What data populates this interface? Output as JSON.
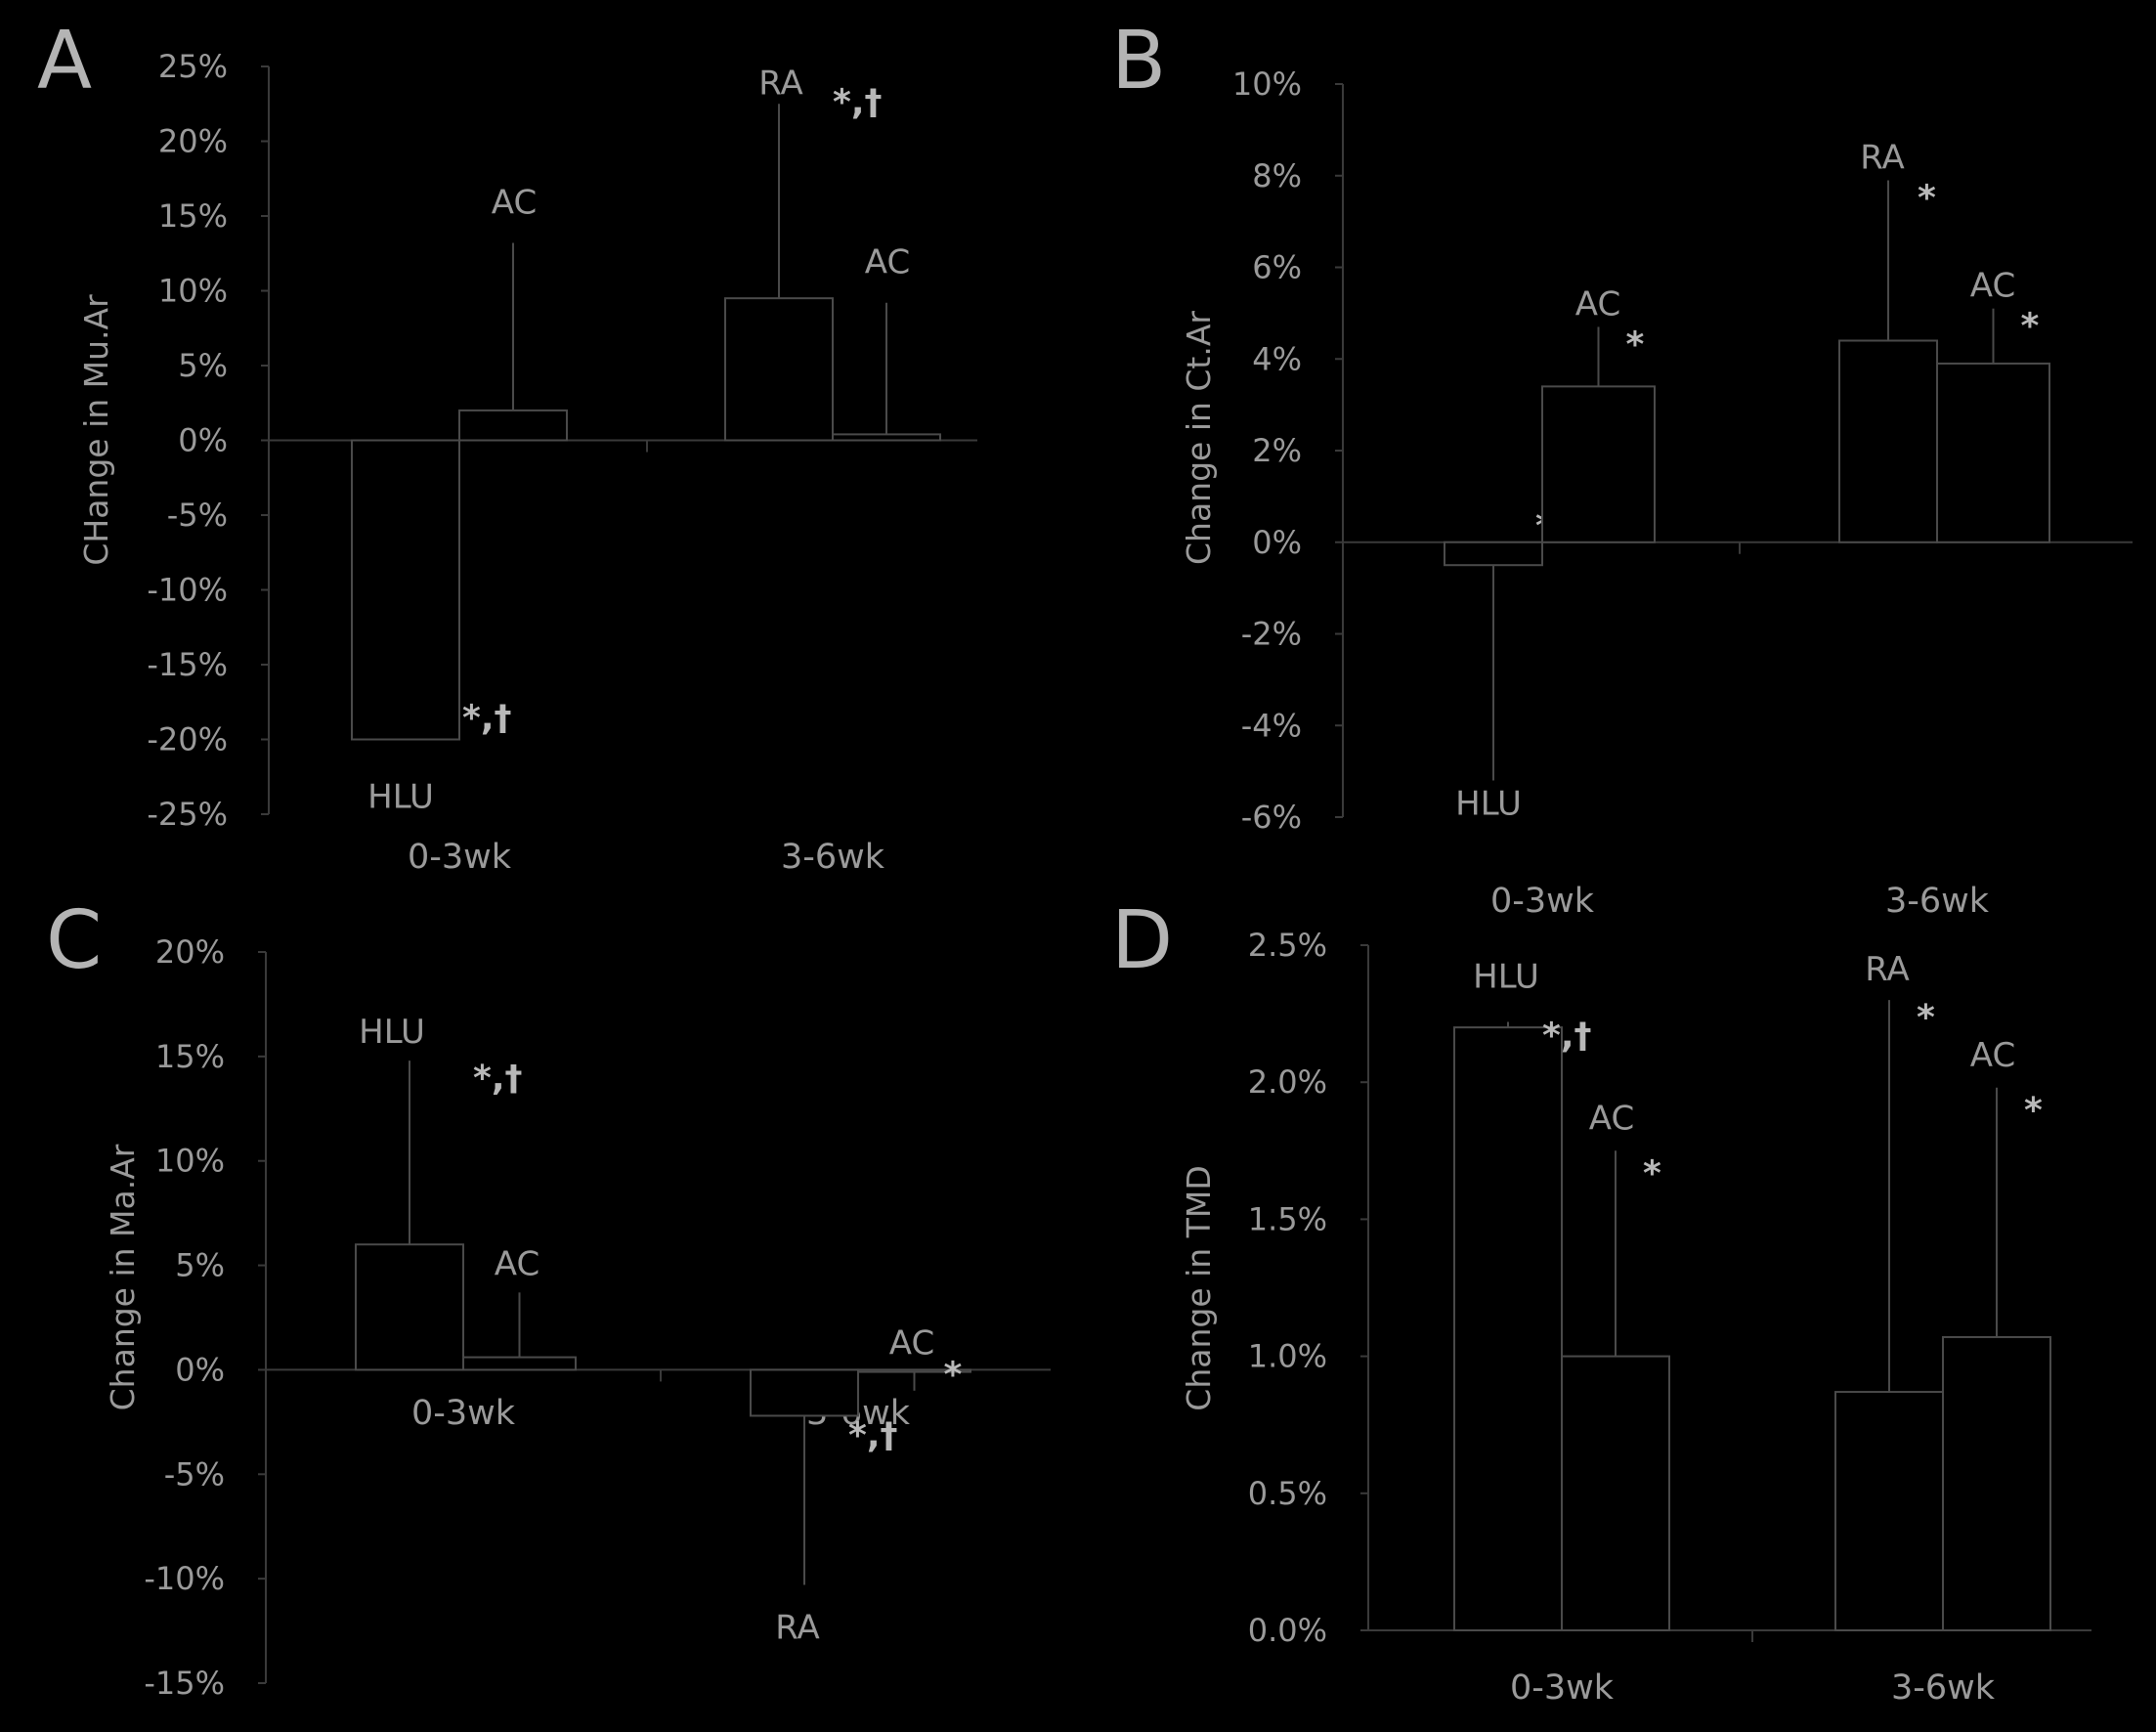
{
  "chart_data": [
    {
      "id": "A",
      "panel_label": "A",
      "type": "bar",
      "ylabel": "CHange in Mu.Ar",
      "ylim": [
        -25,
        25
      ],
      "yticks": [
        -25,
        -20,
        -15,
        -10,
        -5,
        0,
        5,
        10,
        15,
        20,
        25
      ],
      "tick_labels": [
        "-25%",
        "-20%",
        "-15%",
        "-10%",
        "-5%",
        "0%",
        "5%",
        "10%",
        "15%",
        "20%",
        "25%"
      ],
      "categories": [
        "0-3wk",
        "3-6wk"
      ],
      "series": [
        {
          "name": "HLU",
          "values": [
            -20,
            null
          ],
          "errors": [
            0,
            null
          ],
          "sig": [
            "*,†",
            null
          ]
        },
        {
          "name": "RA",
          "values": [
            null,
            9.5
          ],
          "errors": [
            null,
            13
          ],
          "sig": [
            null,
            "*,†"
          ]
        },
        {
          "name": "AC",
          "values": [
            2,
            0.4
          ],
          "errors": [
            11.2,
            8.8
          ],
          "sig": [
            "",
            ""
          ]
        }
      ]
    },
    {
      "id": "B",
      "panel_label": "B",
      "type": "bar",
      "ylabel": "Change in Ct.Ar",
      "ylim": [
        -6,
        10
      ],
      "yticks": [
        -6,
        -4,
        -2,
        0,
        2,
        4,
        6,
        8,
        10
      ],
      "tick_labels": [
        "-6%",
        "-4%",
        "-2%",
        "0%",
        "2%",
        "4%",
        "6%",
        "8%",
        "10%"
      ],
      "categories": [
        "0-3wk",
        "3-6wk"
      ],
      "series": [
        {
          "name": "HLU",
          "values": [
            -0.5,
            null
          ],
          "errors": [
            4.7,
            null
          ],
          "sig": [
            "*,†",
            null
          ]
        },
        {
          "name": "RA",
          "values": [
            null,
            4.4
          ],
          "errors": [
            null,
            3.5
          ],
          "sig": [
            null,
            "*"
          ]
        },
        {
          "name": "AC",
          "values": [
            3.4,
            3.9
          ],
          "errors": [
            1.3,
            1.2
          ],
          "sig": [
            "*",
            "*"
          ]
        }
      ]
    },
    {
      "id": "C",
      "panel_label": "C",
      "type": "bar",
      "ylabel": "Change in Ma.Ar",
      "ylim": [
        -15,
        20
      ],
      "yticks": [
        -15,
        -10,
        -5,
        0,
        5,
        10,
        15,
        20
      ],
      "tick_labels": [
        "-15%",
        "-10%",
        "-5%",
        "0%",
        "5%",
        "10%",
        "15%",
        "20%"
      ],
      "categories": [
        "0-3wk",
        "3-6wk"
      ],
      "series": [
        {
          "name": "HLU",
          "values": [
            6,
            null
          ],
          "errors": [
            8.8,
            null
          ],
          "sig": [
            "*,†",
            null
          ]
        },
        {
          "name": "RA",
          "values": [
            null,
            -2.2
          ],
          "errors": [
            null,
            8.1
          ],
          "sig": [
            null,
            "*,†"
          ]
        },
        {
          "name": "AC",
          "values": [
            0.6,
            -0.1
          ],
          "errors": [
            3.1,
            0.9
          ],
          "sig": [
            "",
            "*"
          ]
        }
      ]
    },
    {
      "id": "D",
      "panel_label": "D",
      "type": "bar",
      "ylabel": "Change in TMD",
      "ylim": [
        0,
        2.5
      ],
      "yticks": [
        0,
        0.5,
        1.0,
        1.5,
        2.0,
        2.5
      ],
      "tick_labels": [
        "0.0%",
        "0.5%",
        "1.0%",
        "1.5%",
        "2.0%",
        "2.5%"
      ],
      "categories": [
        "0-3wk",
        "3-6wk"
      ],
      "series": [
        {
          "name": "HLU",
          "values": [
            2.2,
            null
          ],
          "errors": [
            0.02,
            null
          ],
          "sig": [
            "*,†",
            null
          ]
        },
        {
          "name": "RA",
          "values": [
            null,
            0.87
          ],
          "errors": [
            null,
            1.43
          ],
          "sig": [
            null,
            "*"
          ]
        },
        {
          "name": "AC",
          "values": [
            1.0,
            1.07
          ],
          "errors": [
            0.75,
            0.91
          ],
          "sig": [
            "*",
            "*"
          ]
        }
      ]
    }
  ]
}
